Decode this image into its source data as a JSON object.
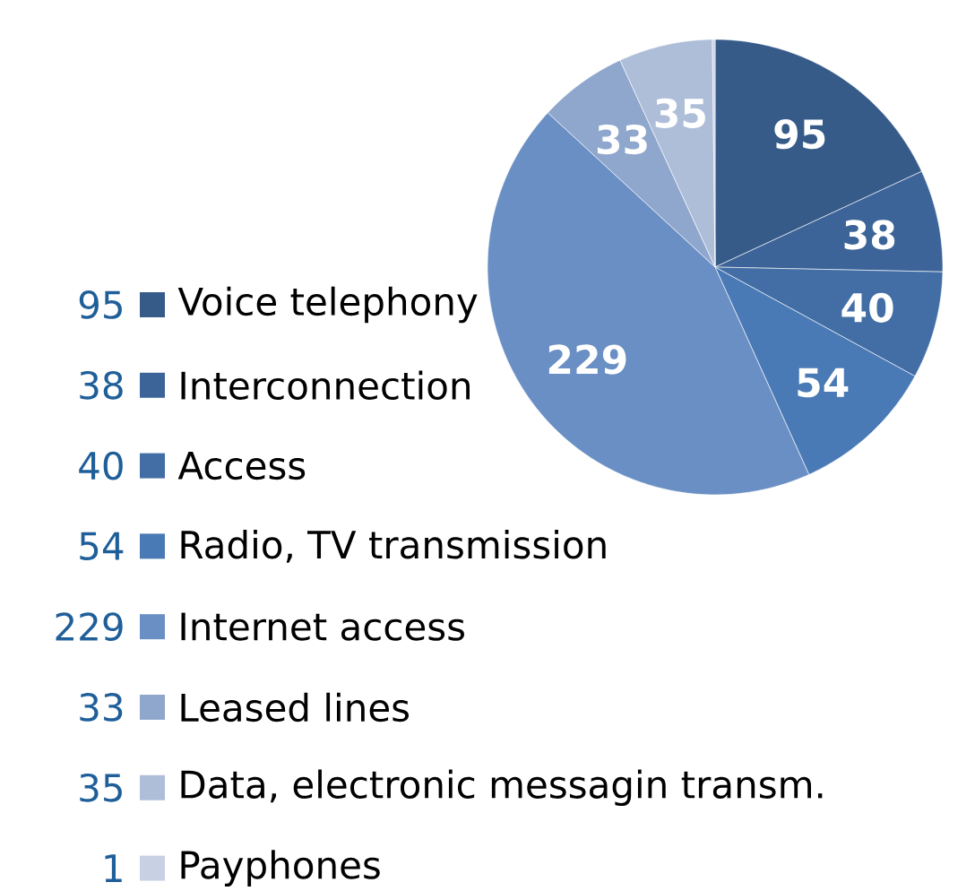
{
  "chart_data": {
    "type": "pie",
    "categories": [
      "Voice telephony",
      "Interconnection",
      "Access",
      "Radio, TV transmission",
      "Internet access",
      "Leased lines",
      "Data, electronic messagin transm.",
      "Payphones"
    ],
    "values": [
      95,
      38,
      40,
      54,
      229,
      33,
      35,
      1
    ],
    "colors": [
      "#365b89",
      "#3d6499",
      "#426ea5",
      "#4a7ab6",
      "#6a8fc4",
      "#8fa6cd",
      "#aebed9",
      "#c8d1e4"
    ],
    "value_labels": [
      "95",
      "38",
      "40",
      "54",
      "229",
      "33",
      "35",
      "1"
    ],
    "legend": "left"
  }
}
